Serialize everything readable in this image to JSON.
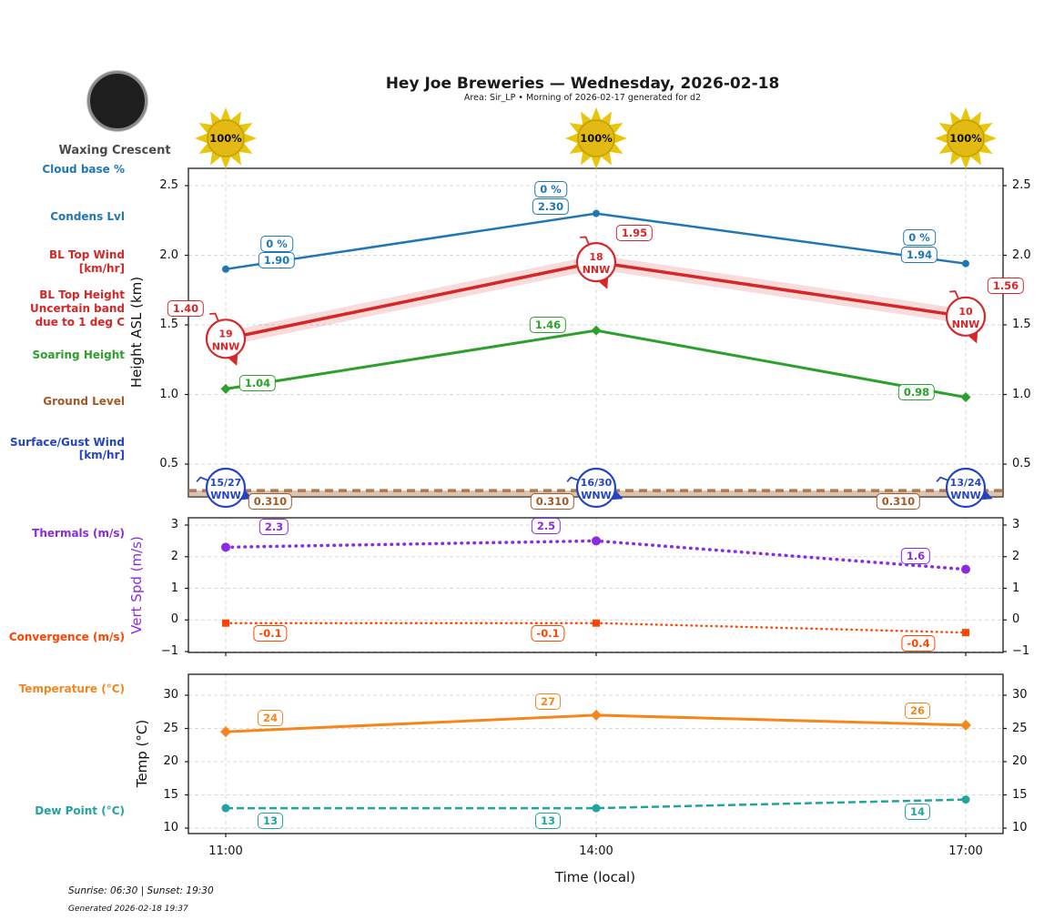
{
  "header": {
    "title": "Hey Joe Breweries — Wednesday, 2026-02-18",
    "subtitle": "Area: Sir_LP • Morning of 2026-02-17 generated for d2"
  },
  "moon": {
    "phase_label": "Waxing Crescent"
  },
  "sun_labels": [
    "100%",
    "100%",
    "100%"
  ],
  "left_labels": {
    "cloud_base": "Cloud base %",
    "condens": "Condens Lvl",
    "bl_top_wind_1": "BL Top Wind",
    "bl_top_wind_2": "[km/hr]",
    "bl_top_height_1": "BL Top Height",
    "bl_top_height_2": "Uncertain band",
    "bl_top_height_3": "due to 1 deg C",
    "soaring": "Soaring Height",
    "ground": "Ground Level",
    "surface_wind_1": "Surface/Gust Wind",
    "surface_wind_2": "[km/hr]",
    "thermals": "Thermals (m/s)",
    "convergence": "Convergence (m/s)",
    "temperature": "Temperature (°C)",
    "dew_point": "Dew Point (°C)"
  },
  "x_axis": {
    "labels": [
      "11:00",
      "14:00",
      "17:00"
    ],
    "title": "Time (local)"
  },
  "footer": {
    "sun_times": "Sunrise: 06:30 | Sunset: 19:30",
    "generated": "Generated 2026-02-18 19:37"
  },
  "colors": {
    "blue": "#2077b4",
    "red": "#d62728",
    "green": "#2ca02c",
    "brown_line": "#b0794e",
    "brown_text": "#a05a28",
    "royal_blue": "#2444c4",
    "purple": "#8a2be2",
    "orangered": "#ff4500",
    "orange": "#f5861d",
    "teal": "#21a49d",
    "sun_gold": "#eac50e",
    "sun_core": "#e2ba12",
    "moon_dark": "#1e1e1e",
    "moon_ring": "#8a8a8a",
    "grid": "#d9d9d9",
    "axis": "#1a1a1a",
    "gray_text": "#4a4a4a"
  },
  "chart_data": [
    {
      "type": "line",
      "panel": "height_asl",
      "ylabel": "Height ASL (km)",
      "yticks": [
        2.5,
        2.0,
        1.5,
        1.0,
        0.5
      ],
      "ytick_labels": [
        "2.5",
        "2.0",
        "1.5",
        "1.0",
        "0.5"
      ],
      "ylim": [
        0.26,
        2.62
      ],
      "x": [
        "11:00",
        "14:00",
        "17:00"
      ],
      "series": [
        {
          "name": "Cloud base %",
          "color": "#2077b4",
          "label_only": true,
          "values": [
            0,
            0,
            0
          ],
          "labels": [
            "0 %",
            "0 %",
            "0 %"
          ]
        },
        {
          "name": "Condens Lvl",
          "color": "#2077b4",
          "line": "solid",
          "marker": "circle",
          "values": [
            1.9,
            2.3,
            1.94
          ],
          "labels": [
            "1.90",
            "2.30",
            "1.94"
          ]
        },
        {
          "name": "BL Top Height",
          "color": "#d62728",
          "line": "solid",
          "uncertainty_band": "due to 1 deg C",
          "values": [
            1.4,
            1.95,
            1.56
          ],
          "labels": [
            "1.40",
            "1.95",
            "1.56"
          ],
          "wind": {
            "units": "km/hr",
            "speeds": [
              "19",
              "18",
              "10"
            ],
            "dirs": [
              "NNW",
              "NNW",
              "NNW"
            ]
          }
        },
        {
          "name": "Soaring Height",
          "color": "#2ca02c",
          "line": "solid",
          "marker": "diamond",
          "values": [
            1.04,
            1.46,
            0.98
          ],
          "labels": [
            "1.04",
            "1.46",
            "0.98"
          ]
        },
        {
          "name": "Ground Level",
          "color": "#b0794e",
          "label_color": "#a05a28",
          "line": "dashed",
          "values": [
            0.31,
            0.31,
            0.31
          ],
          "labels": [
            "0.310",
            "0.310",
            "0.310"
          ]
        },
        {
          "name": "Surface/Gust Wind",
          "color": "#2444c4",
          "wind": {
            "units": "km/hr",
            "speeds": [
              "15/27",
              "16/30",
              "13/24"
            ],
            "dirs": [
              "WNW",
              "WNW",
              "WNW"
            ]
          }
        }
      ]
    },
    {
      "type": "line",
      "panel": "vert_spd",
      "ylabel": "Vert Spd (m/s)",
      "yticks": [
        3,
        2,
        1,
        0,
        -1
      ],
      "ytick_labels": [
        "3",
        "2",
        "1",
        "0",
        "−1"
      ],
      "ylim": [
        -1.2,
        3.2
      ],
      "x": [
        "11:00",
        "14:00",
        "17:00"
      ],
      "series": [
        {
          "name": "Thermals",
          "color": "#8a2be2",
          "line": "dotted",
          "marker": "circle",
          "values": [
            2.3,
            2.5,
            1.6
          ],
          "labels": [
            "2.3",
            "2.5",
            "1.6"
          ]
        },
        {
          "name": "Convergence",
          "color": "#ff4500",
          "line": "dotted",
          "marker": "square",
          "values": [
            -0.1,
            -0.1,
            -0.4
          ],
          "labels": [
            "-0.1",
            "-0.1",
            "-0.4"
          ]
        }
      ]
    },
    {
      "type": "line",
      "panel": "temperature",
      "ylabel": "Temp (°C)",
      "yticks": [
        30,
        25,
        20,
        15,
        10
      ],
      "ytick_labels": [
        "30",
        "25",
        "20",
        "15",
        "10"
      ],
      "ylim": [
        9.5,
        32
      ],
      "x": [
        "11:00",
        "14:00",
        "17:00"
      ],
      "series": [
        {
          "name": "Temperature",
          "color": "#f5861d",
          "line": "solid",
          "marker": "diamond",
          "values": [
            24.5,
            27.0,
            25.5
          ],
          "labels": [
            "24",
            "27",
            "26"
          ]
        },
        {
          "name": "Dew Point",
          "color": "#21a49d",
          "line": "dashed",
          "marker": "circle",
          "values": [
            13.0,
            13.0,
            14.3
          ],
          "labels": [
            "13",
            "13",
            "14"
          ]
        }
      ]
    }
  ]
}
